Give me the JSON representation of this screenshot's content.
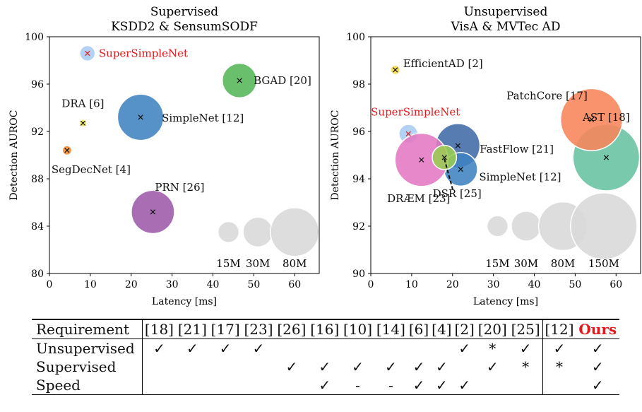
{
  "chart_data": [
    {
      "type": "scatter",
      "title": "Supervised",
      "subtitle": "KSDD2 & SensumSODF",
      "xlabel": "Latency [ms]",
      "ylabel": "Detection AUROC",
      "xlim": [
        0,
        66
      ],
      "ylim": [
        80,
        100
      ],
      "xticks": [
        0,
        10,
        20,
        30,
        40,
        50,
        60
      ],
      "yticks": [
        80,
        84,
        88,
        92,
        96,
        100
      ],
      "points": [
        {
          "label": "SuperSimpleNet",
          "x": 9.3,
          "y": 98.6,
          "size_m": 8,
          "color": "#a9cbf0",
          "label_color": "#e3191c",
          "marker_color": "#e3191c"
        },
        {
          "label": "BGAD [20]",
          "x": 46.5,
          "y": 96.3,
          "size_m": 40,
          "color": "#54b658",
          "label_color": "#111111",
          "marker_color": "#111111"
        },
        {
          "label": "DRA [6]",
          "x": 8.2,
          "y": 92.7,
          "size_m": 2,
          "color": "#f5ee4a",
          "label_color": "#111111",
          "marker_color": "#111111"
        },
        {
          "label": "SimpleNet [12]",
          "x": 22.3,
          "y": 93.2,
          "size_m": 72,
          "color": "#3f82c0",
          "label_color": "#111111",
          "marker_color": "#111111"
        },
        {
          "label": "SegDecNet [4]",
          "x": 4.3,
          "y": 90.4,
          "size_m": 3,
          "color": "#f08a31",
          "label_color": "#111111",
          "marker_color": "#111111"
        },
        {
          "label": "PRN [26]",
          "x": 25.3,
          "y": 85.2,
          "size_m": 63,
          "color": "#9c59a8",
          "label_color": "#111111",
          "marker_color": "#111111"
        }
      ],
      "size_legend": [
        {
          "label": "15M",
          "x": 43.8,
          "y": 83.5,
          "size_m": 15
        },
        {
          "label": "30M",
          "x": 51.0,
          "y": 83.5,
          "size_m": 30
        },
        {
          "label": "80M",
          "x": 60.0,
          "y": 83.5,
          "size_m": 80
        }
      ]
    },
    {
      "type": "scatter",
      "title": "Unsupervised",
      "subtitle": "VisA & MVTec AD",
      "xlabel": "Latency [ms]",
      "ylabel": "Detection AUROC",
      "xlim": [
        0,
        66
      ],
      "ylim": [
        90,
        100
      ],
      "xticks": [
        0,
        10,
        20,
        30,
        40,
        50,
        60
      ],
      "yticks": [
        90,
        92,
        94,
        96,
        98,
        100
      ],
      "points": [
        {
          "label": "AST [18]",
          "x": 57.6,
          "y": 94.9,
          "size_m": 150,
          "color": "#66c2a1",
          "label_color": "#111111",
          "marker_color": "#111111"
        },
        {
          "label": "PatchCore [17]",
          "x": 54.0,
          "y": 96.5,
          "size_m": 130,
          "color": "#f7845a",
          "label_color": "#111111",
          "marker_color": "#111111"
        },
        {
          "label": "EfficientAD [2]",
          "x": 6.0,
          "y": 98.6,
          "size_m": 3,
          "color": "#f5d94a",
          "label_color": "#111111",
          "marker_color": "#111111"
        },
        {
          "label": "SuperSimpleNet",
          "x": 9.2,
          "y": 95.9,
          "size_m": 12,
          "color": "#a9cbf0",
          "label_color": "#e3191c",
          "marker_color": "#e3191c"
        },
        {
          "label": "FastFlow [21]",
          "x": 21.3,
          "y": 95.4,
          "size_m": 66,
          "color": "#3f6aa6",
          "label_color": "#111111",
          "marker_color": "#111111"
        },
        {
          "label": "SimpleNet [12]",
          "x": 22.0,
          "y": 94.4,
          "size_m": 38,
          "color": "#3f82c0",
          "label_color": "#111111",
          "marker_color": "#111111"
        },
        {
          "label": "DRÆM [23]",
          "x": 12.4,
          "y": 94.8,
          "size_m": 95,
          "color": "#e377c2",
          "label_color": "#111111",
          "marker_color": "#111111"
        },
        {
          "label": "DSR [25]",
          "x": 18.0,
          "y": 94.9,
          "size_m": 20,
          "color": "#9acd52",
          "label_color": "#111111",
          "marker_color": "#111111"
        }
      ],
      "size_legend": [
        {
          "label": "15M",
          "x": 31.0,
          "y": 92.0,
          "size_m": 15
        },
        {
          "label": "30M",
          "x": 38.0,
          "y": 92.0,
          "size_m": 30
        },
        {
          "label": "80M",
          "x": 47.0,
          "y": 92.0,
          "size_m": 80
        },
        {
          "label": "150M",
          "x": 57.0,
          "y": 92.0,
          "size_m": 150
        }
      ]
    },
    {
      "type": "table",
      "columns": [
        "Requirement",
        "[18]",
        "[21]",
        "[17]",
        "[23]",
        "[26]",
        "[16]",
        "[10]",
        "[14]",
        "[6]",
        "[4]",
        "[2]",
        "[20]",
        "[25]",
        "[12]",
        "Ours"
      ],
      "rows": [
        {
          "label": "Unsupervised",
          "cells": [
            "✓",
            "✓",
            "✓",
            "✓",
            "",
            "",
            "",
            "",
            "",
            "",
            "✓",
            "*",
            "✓",
            "✓",
            "✓"
          ]
        },
        {
          "label": "Supervised",
          "cells": [
            "",
            "",
            "",
            "",
            "✓",
            "✓",
            "✓",
            "✓",
            "✓",
            "✓",
            "",
            "✓",
            "*",
            "*",
            "✓"
          ]
        },
        {
          "label": "Speed",
          "cells": [
            "",
            "",
            "",
            "",
            "",
            "✓",
            "-",
            "-",
            "✓",
            "✓",
            "✓",
            "",
            "",
            "",
            "✓"
          ]
        }
      ]
    }
  ]
}
